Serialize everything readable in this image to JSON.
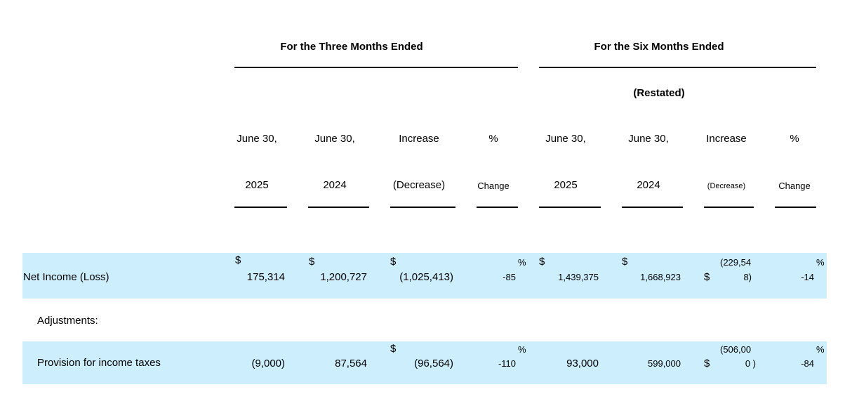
{
  "header": {
    "three_months": "For the Three Months Ended",
    "six_months": "For the Six Months Ended",
    "restated": "(Restated)",
    "columns": {
      "c1": [
        "June 30,",
        "2025"
      ],
      "c2": [
        "June 30,",
        "2024"
      ],
      "c3": [
        "Increase",
        "(Decrease)"
      ],
      "c4": [
        "%",
        "Change"
      ],
      "c5": [
        "June 30,",
        "2025"
      ],
      "c6": [
        "June 30,",
        "2024"
      ],
      "c7": [
        "Increase",
        "(Decrease)"
      ],
      "c8": [
        "%",
        "Change"
      ]
    }
  },
  "rows": {
    "net_income": {
      "label": "Net Income (Loss)",
      "c1_sym": "$",
      "c1": "175,314",
      "c2_sym": "$",
      "c2": "1,200,727",
      "c3_sym": "$",
      "c3": "(1,025,413)",
      "c4_sym": "%",
      "c4": "-85",
      "c5_sym": "$",
      "c5": "1,439,375",
      "c6_sym": "$",
      "c6": "1,668,923",
      "c7_sym": "$",
      "c7_line1": "(229,54",
      "c7_line2": "8)",
      "c8_sym": "%",
      "c8": "-14"
    },
    "adjustments": {
      "label": "Adjustments:"
    },
    "provision": {
      "label": "Provision for income taxes",
      "c1": "(9,000)",
      "c2": "87,564",
      "c3_sym": "$",
      "c3": "(96,564)",
      "c4_sym": "%",
      "c4": "-110",
      "c5": "93,000",
      "c6": "599,000",
      "c7_sym": "$",
      "c7_line1": "(506,00",
      "c7_line2": "0 )",
      "c8_sym": "%",
      "c8": "-84"
    }
  }
}
